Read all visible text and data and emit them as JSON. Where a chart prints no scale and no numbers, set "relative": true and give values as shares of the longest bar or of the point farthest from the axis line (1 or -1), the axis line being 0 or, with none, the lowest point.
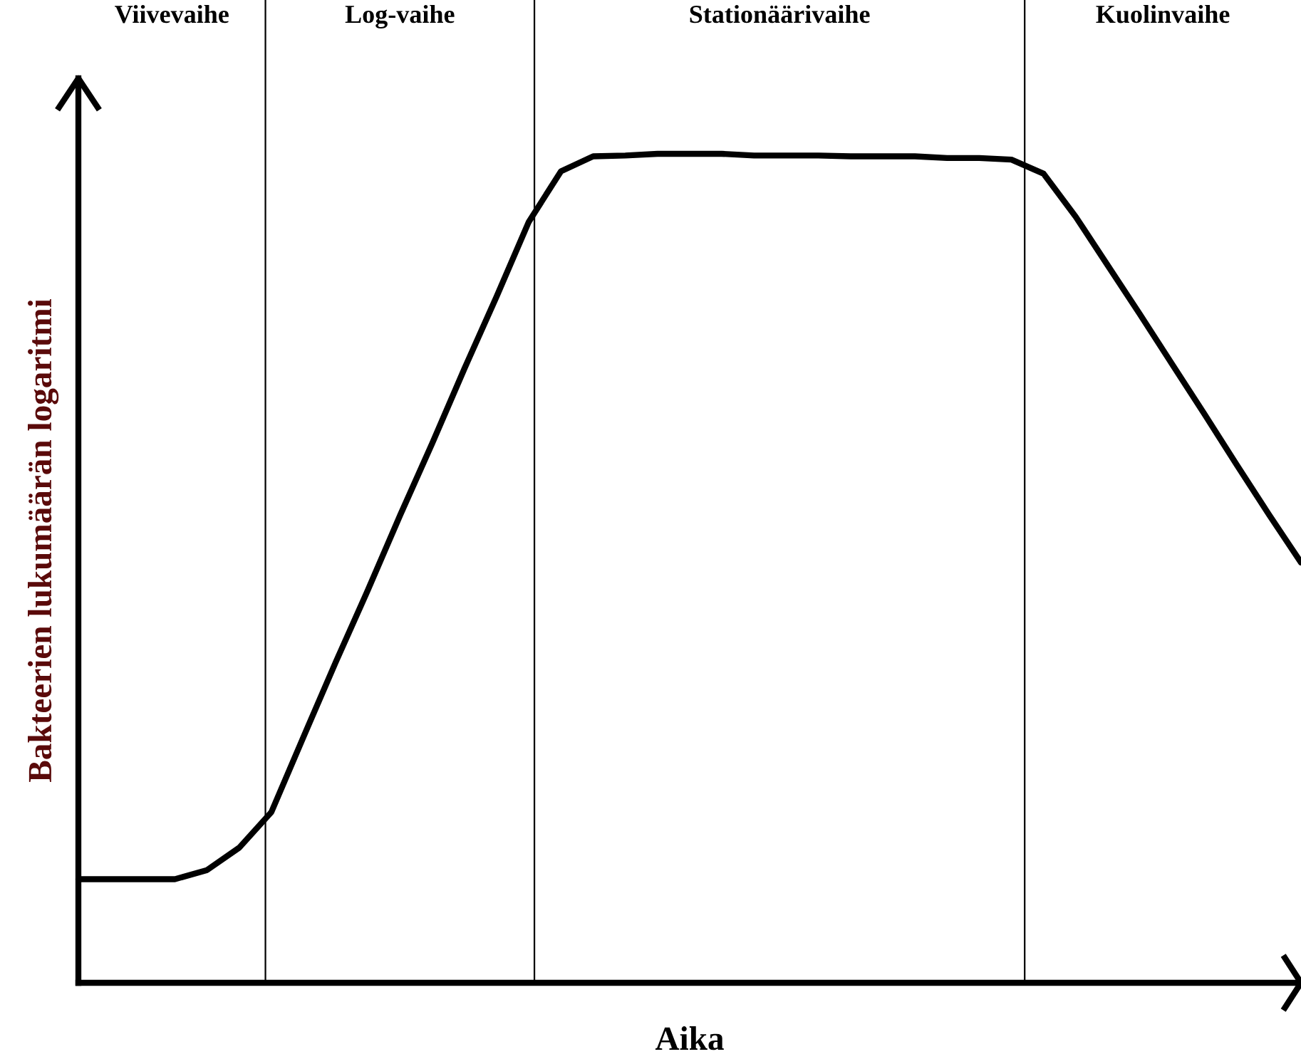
{
  "chart_data": {
    "type": "line",
    "relative": true,
    "xlabel": "Aika",
    "ylabel": "Bakteerien lukumäärän logaritmi",
    "categories": [
      null,
      null,
      null,
      null,
      null,
      null,
      null,
      null,
      null,
      null,
      null,
      null,
      null,
      null,
      null,
      null,
      null,
      null,
      null,
      null,
      null,
      null,
      null,
      null,
      null,
      null,
      null,
      null,
      null,
      null,
      null,
      null,
      null,
      null,
      null,
      null,
      null,
      null,
      null
    ],
    "series": [
      {
        "color": "#000000",
        "values": [
          0.125,
          0.125,
          0.125,
          0.125,
          0.136,
          0.163,
          0.206,
          0.297,
          0.387,
          0.474,
          0.564,
          0.651,
          0.741,
          0.828,
          0.918,
          0.979,
          0.997,
          0.998,
          1,
          1,
          1,
          0.998,
          0.998,
          0.998,
          0.997,
          0.997,
          0.997,
          0.995,
          0.995,
          0.993,
          0.976,
          0.924,
          0.865,
          0.806,
          0.746,
          0.686,
          0.625,
          0.565,
          0.507
        ]
      }
    ],
    "annotations": [
      "Viivevaihe",
      "Log-vaihe",
      "Stationäärivaihe",
      "Kuolinvaihe"
    ],
    "legend": false,
    "marker": "none",
    "line_style": "solid"
  }
}
